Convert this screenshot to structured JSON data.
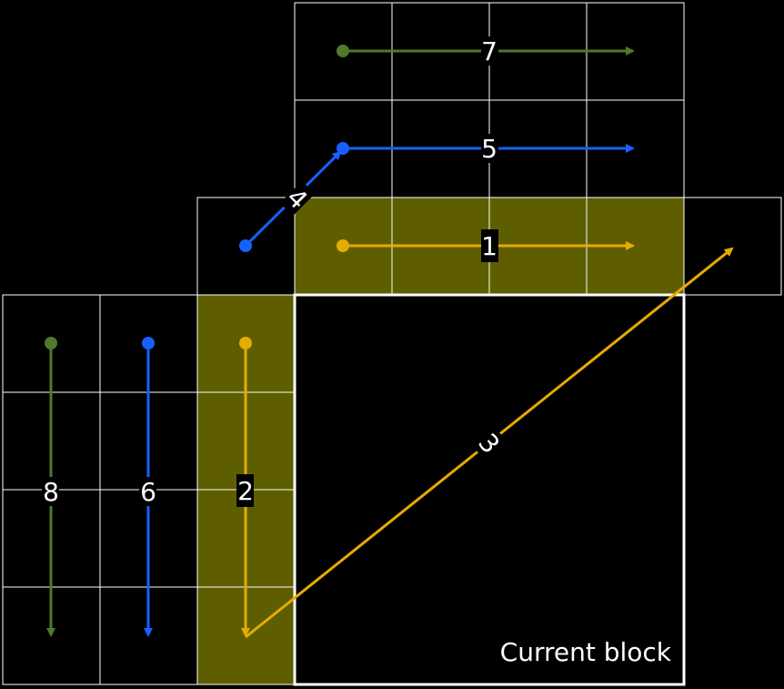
{
  "caption": "Current block",
  "colors": {
    "background": "#000000",
    "grid": "#ffffff",
    "highlight": "#5e5e00",
    "yellow": "#e6ac00",
    "blue": "#1560ff",
    "green": "#4e7a2a",
    "label_text": "#ffffff",
    "label_box": "#000000"
  },
  "arrows": [
    {
      "id": "1",
      "label": "1",
      "color": "yellow",
      "kind": "horizontal-top-adjacent-row"
    },
    {
      "id": "2",
      "label": "2",
      "color": "yellow",
      "kind": "vertical-left-adjacent-column"
    },
    {
      "id": "3",
      "label": "3",
      "color": "yellow",
      "kind": "diagonal-bottom-left-to-top-right"
    },
    {
      "id": "4",
      "label": "4",
      "color": "blue",
      "kind": "diagonal-connector"
    },
    {
      "id": "5",
      "label": "5",
      "color": "blue",
      "kind": "horizontal-second-row-above"
    },
    {
      "id": "6",
      "label": "6",
      "color": "blue",
      "kind": "vertical-second-column-left"
    },
    {
      "id": "7",
      "label": "7",
      "color": "green",
      "kind": "horizontal-third-row-above"
    },
    {
      "id": "8",
      "label": "8",
      "color": "green",
      "kind": "vertical-third-column-left"
    }
  ]
}
